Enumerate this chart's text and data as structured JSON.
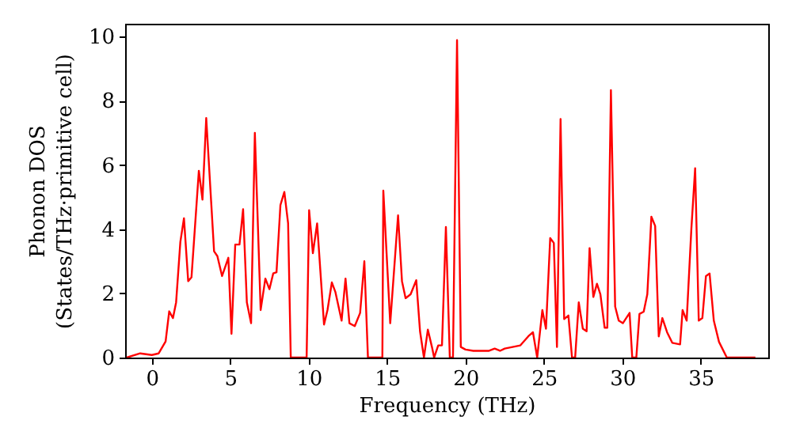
{
  "chart_data": {
    "type": "line",
    "xlabel": "Frequency (THz)",
    "ylabel": "Phonon DOS\n(States/THz·primitive cell)",
    "x": [
      -1.6,
      -0.74,
      0,
      0.44,
      0.88,
      1.11,
      1.35,
      1.55,
      1.82,
      2.05,
      2.32,
      2.53,
      3.0,
      3.23,
      3.47,
      3.97,
      4.18,
      4.48,
      4.88,
      5.08,
      5.32,
      5.59,
      5.82,
      6.06,
      6.33,
      6.57,
      6.94,
      7.24,
      7.5,
      7.74,
      7.95,
      8.2,
      8.45,
      8.69,
      8.86,
      9.87,
      10.03,
      10.27,
      10.54,
      10.98,
      11.2,
      11.48,
      11.7,
      12.1,
      12.35,
      12.6,
      12.94,
      13.28,
      13.55,
      13.78,
      14.7,
      14.76,
      15.2,
      15.7,
      15.95,
      16.18,
      16.5,
      16.86,
      17.1,
      17.35,
      17.6,
      17.86,
      18.0,
      18.26,
      18.5,
      18.75,
      19.0,
      19.2,
      19.46,
      19.7,
      20.0,
      20.5,
      21.5,
      21.86,
      22.2,
      22.5,
      23.5,
      24.0,
      24.3,
      24.57,
      24.9,
      25.13,
      25.4,
      25.63,
      25.83,
      26.06,
      26.29,
      26.56,
      26.79,
      26.99,
      27.22,
      27.48,
      27.72,
      27.91,
      28.15,
      28.38,
      28.6,
      28.87,
      29.04,
      29.27,
      29.54,
      29.77,
      30.03,
      30.46,
      30.63,
      30.89,
      31.09,
      31.36,
      31.59,
      31.85,
      32.09,
      32.32,
      32.55,
      32.85,
      33.18,
      33.68,
      33.84,
      34.1,
      34.4,
      34.64,
      34.87,
      35.1,
      35.33,
      35.56,
      35.83,
      36.16,
      36.66,
      38.48
    ],
    "series": [
      {
        "color": "#ff0000",
        "values": [
          0,
          0.13,
          0.08,
          0.13,
          0.5,
          1.44,
          1.23,
          1.72,
          3.6,
          4.34,
          2.38,
          2.5,
          5.82,
          4.92,
          7.46,
          3.31,
          3.16,
          2.54,
          3.11,
          0.74,
          3.52,
          3.52,
          4.62,
          1.72,
          1.07,
          7.0,
          1.48,
          2.46,
          2.13,
          2.62,
          2.66,
          4.75,
          5.16,
          4.18,
          0,
          0,
          4.59,
          3.25,
          4.18,
          1.03,
          1.48,
          2.34,
          2.05,
          1.15,
          2.46,
          1.07,
          0.98,
          1.39,
          3.0,
          0,
          0,
          5.2,
          1.07,
          4.43,
          2.38,
          1.85,
          1.97,
          2.41,
          0.82,
          0,
          0.87,
          0.33,
          0,
          0.38,
          0.38,
          4.07,
          0,
          0,
          9.89,
          0.33,
          0.25,
          0.21,
          0.21,
          0.28,
          0.21,
          0.28,
          0.38,
          0.66,
          0.79,
          0,
          1.48,
          0.9,
          3.72,
          3.57,
          0.33,
          7.43,
          1.2,
          1.31,
          0,
          0,
          1.72,
          0.9,
          0.82,
          3.41,
          1.89,
          2.3,
          1.97,
          0.93,
          0.93,
          8.33,
          1.59,
          1.15,
          1.07,
          1.39,
          0,
          0,
          1.36,
          1.43,
          1.97,
          4.39,
          4.1,
          0.66,
          1.23,
          0.79,
          0.46,
          0.41,
          1.48,
          1.15,
          4.02,
          5.9,
          1.15,
          1.23,
          2.54,
          2.62,
          1.15,
          0.49,
          0,
          0
        ]
      }
    ],
    "xlim": [
      -1.7,
      39.3
    ],
    "xticks": [
      0,
      5,
      10,
      15,
      20,
      25,
      30,
      35
    ],
    "ylim": [
      0,
      10.4
    ],
    "yticks": [
      0,
      2,
      4,
      6,
      8,
      10
    ],
    "grid": false,
    "marker": "none",
    "line_style": "solid"
  }
}
